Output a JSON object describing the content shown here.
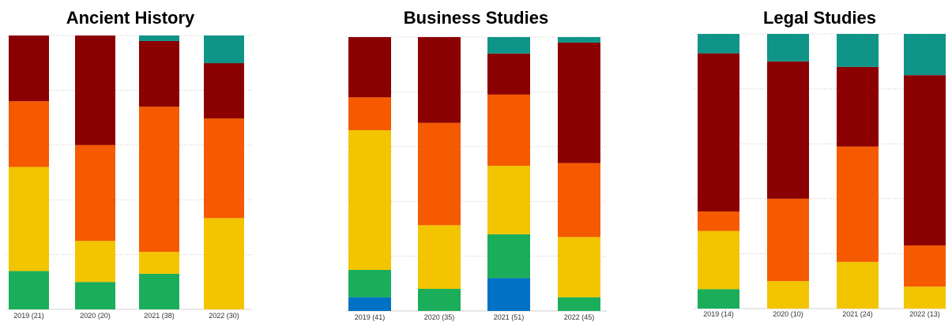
{
  "colors": {
    "level1": "#0071c5",
    "level2": "#1aae5b",
    "level3": "#f2c500",
    "level4": "#f55a00",
    "level5": "#8b0000",
    "level6": "#0f9488"
  },
  "chart_data": [
    {
      "type": "bar",
      "stacked": true,
      "normalized": true,
      "title": "Ancient History",
      "categories": [
        "2019 (21)",
        "2020 (20)",
        "2021 (38)",
        "2022 (30)"
      ],
      "series": [
        {
          "color_key": "level1",
          "values": [
            0,
            0,
            0,
            0
          ]
        },
        {
          "color_key": "level2",
          "values": [
            14,
            10,
            13,
            0
          ]
        },
        {
          "color_key": "level3",
          "values": [
            38,
            15,
            8,
            33
          ]
        },
        {
          "color_key": "level4",
          "values": [
            24,
            35,
            53,
            36
          ]
        },
        {
          "color_key": "level5",
          "values": [
            24,
            40,
            24,
            20
          ]
        },
        {
          "color_key": "level6",
          "values": [
            0,
            0,
            2,
            10
          ]
        }
      ],
      "ylim": [
        0,
        100
      ],
      "grid": true
    },
    {
      "type": "bar",
      "stacked": true,
      "normalized": true,
      "title": "Business Studies",
      "categories": [
        "2019 (41)",
        "2020 (35)",
        "2021 (51)",
        "2022 (45)"
      ],
      "series": [
        {
          "color_key": "level1",
          "values": [
            5,
            0,
            12,
            0
          ]
        },
        {
          "color_key": "level2",
          "values": [
            10,
            8,
            16,
            5
          ]
        },
        {
          "color_key": "level3",
          "values": [
            51,
            23,
            25,
            22
          ]
        },
        {
          "color_key": "level4",
          "values": [
            12,
            37,
            26,
            27
          ]
        },
        {
          "color_key": "level5",
          "values": [
            22,
            31,
            15,
            44
          ]
        },
        {
          "color_key": "level6",
          "values": [
            0,
            0,
            6,
            2
          ]
        }
      ],
      "ylim": [
        0,
        100
      ],
      "grid": true
    },
    {
      "type": "bar",
      "stacked": true,
      "normalized": true,
      "title": "Legal Studies",
      "categories": [
        "2019 (14)",
        "2020 (10)",
        "2021 (24)",
        "2022 (13)"
      ],
      "series": [
        {
          "color_key": "level1",
          "values": [
            0,
            0,
            0,
            0
          ]
        },
        {
          "color_key": "level2",
          "values": [
            7,
            0,
            0,
            0
          ]
        },
        {
          "color_key": "level3",
          "values": [
            21,
            10,
            17,
            8
          ]
        },
        {
          "color_key": "level4",
          "values": [
            7,
            30,
            42,
            15
          ]
        },
        {
          "color_key": "level5",
          "values": [
            57,
            50,
            29,
            62
          ]
        },
        {
          "color_key": "level6",
          "values": [
            7,
            10,
            12,
            15
          ]
        }
      ],
      "ylim": [
        0,
        100
      ],
      "grid": true
    }
  ]
}
